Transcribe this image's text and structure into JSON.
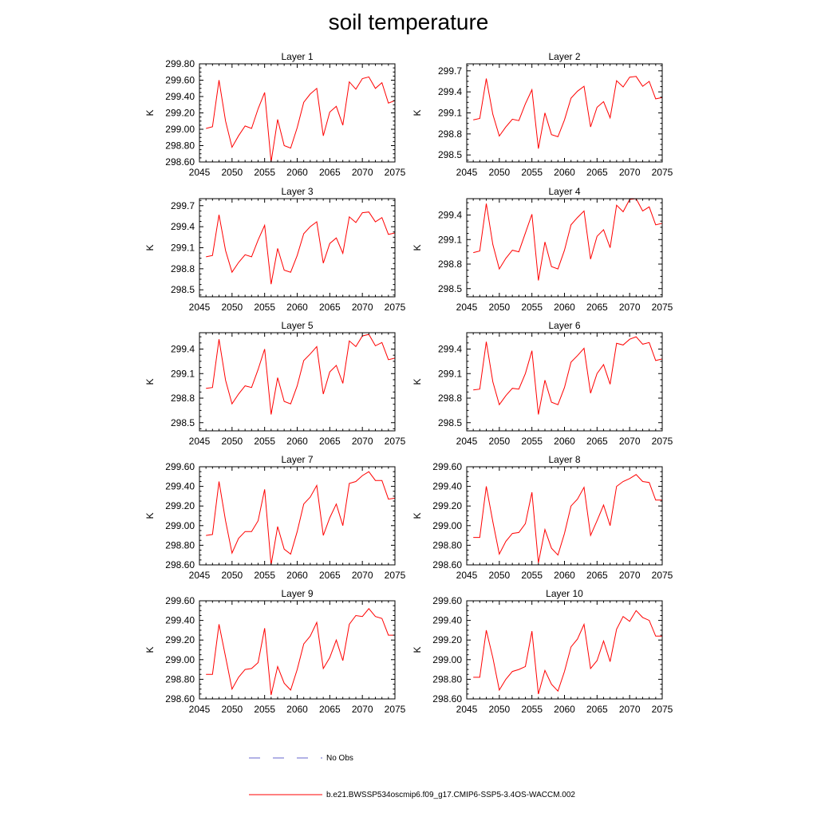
{
  "figure": {
    "title": "soil temperature",
    "legend": {
      "obs_label": "No Obs",
      "model_label": "b.e21.BWSSP534oscmip6.f09_g17.CMIP6-SSP5-3.4OS-WACCM.002"
    },
    "colors": {
      "model": "#ff0000",
      "obs": "#6666cc",
      "axis": "#000000"
    }
  },
  "chart_data": [
    {
      "type": "line",
      "title": "Layer 1",
      "ylabel": "K",
      "xlim": [
        2045,
        2075
      ],
      "ylim": [
        298.6,
        299.8
      ],
      "xticks": [
        2045,
        2050,
        2055,
        2060,
        2065,
        2070,
        2075
      ],
      "yticks": [
        298.6,
        298.8,
        299.0,
        299.2,
        299.4,
        299.6,
        299.8
      ],
      "ytick_decimals": 2,
      "x": [
        2046,
        2047,
        2048,
        2049,
        2050,
        2051,
        2052,
        2053,
        2054,
        2055,
        2056,
        2057,
        2058,
        2059,
        2060,
        2061,
        2062,
        2063,
        2064,
        2065,
        2066,
        2067,
        2068,
        2069,
        2070,
        2071,
        2072,
        2073,
        2074,
        2075
      ],
      "series": [
        {
          "name": "b.e21.BWSSP534oscmip6.f09_g17.CMIP6-SSP5-3.4OS-WACCM.002",
          "values": [
            299.01,
            299.03,
            299.6,
            299.1,
            298.78,
            298.92,
            299.04,
            299.01,
            299.25,
            299.45,
            298.6,
            299.12,
            298.8,
            298.77,
            299.02,
            299.33,
            299.43,
            299.5,
            298.92,
            299.21,
            299.28,
            299.05,
            299.58,
            299.49,
            299.62,
            299.64,
            299.5,
            299.57,
            299.32,
            299.35
          ]
        }
      ]
    },
    {
      "type": "line",
      "title": "Layer 2",
      "ylabel": "K",
      "xlim": [
        2045,
        2075
      ],
      "ylim": [
        298.4,
        299.8
      ],
      "xticks": [
        2045,
        2050,
        2055,
        2060,
        2065,
        2070,
        2075
      ],
      "yticks": [
        298.5,
        298.8,
        299.1,
        299.4,
        299.7
      ],
      "ytick_decimals": 1,
      "x": [
        2046,
        2047,
        2048,
        2049,
        2050,
        2051,
        2052,
        2053,
        2054,
        2055,
        2056,
        2057,
        2058,
        2059,
        2060,
        2061,
        2062,
        2063,
        2064,
        2065,
        2066,
        2067,
        2068,
        2069,
        2070,
        2071,
        2072,
        2073,
        2074,
        2075
      ],
      "series": [
        {
          "name": "b.e21.BWSSP534oscmip6.f09_g17.CMIP6-SSP5-3.4OS-WACCM.002",
          "values": [
            299.0,
            299.02,
            299.59,
            299.08,
            298.77,
            298.9,
            299.01,
            298.99,
            299.23,
            299.43,
            298.59,
            299.1,
            298.79,
            298.76,
            299.0,
            299.31,
            299.41,
            299.48,
            298.9,
            299.18,
            299.26,
            299.03,
            299.56,
            299.47,
            299.61,
            299.62,
            299.48,
            299.55,
            299.3,
            299.32
          ]
        }
      ]
    },
    {
      "type": "line",
      "title": "Layer 3",
      "ylabel": "K",
      "xlim": [
        2045,
        2075
      ],
      "ylim": [
        298.4,
        299.8
      ],
      "xticks": [
        2045,
        2050,
        2055,
        2060,
        2065,
        2070,
        2075
      ],
      "yticks": [
        298.5,
        298.8,
        299.1,
        299.4,
        299.7
      ],
      "ytick_decimals": 1,
      "x": [
        2046,
        2047,
        2048,
        2049,
        2050,
        2051,
        2052,
        2053,
        2054,
        2055,
        2056,
        2057,
        2058,
        2059,
        2060,
        2061,
        2062,
        2063,
        2064,
        2065,
        2066,
        2067,
        2068,
        2069,
        2070,
        2071,
        2072,
        2073,
        2074,
        2075
      ],
      "series": [
        {
          "name": "b.e21.BWSSP534oscmip6.f09_g17.CMIP6-SSP5-3.4OS-WACCM.002",
          "values": [
            298.97,
            298.99,
            299.57,
            299.06,
            298.75,
            298.89,
            299.0,
            298.97,
            299.21,
            299.42,
            298.58,
            299.09,
            298.78,
            298.75,
            298.99,
            299.3,
            299.4,
            299.47,
            298.88,
            299.16,
            299.24,
            299.02,
            299.54,
            299.46,
            299.6,
            299.61,
            299.47,
            299.53,
            299.29,
            299.31
          ]
        }
      ]
    },
    {
      "type": "line",
      "title": "Layer 4",
      "ylabel": "K",
      "xlim": [
        2045,
        2075
      ],
      "ylim": [
        298.4,
        299.6
      ],
      "xticks": [
        2045,
        2050,
        2055,
        2060,
        2065,
        2070,
        2075
      ],
      "yticks": [
        298.5,
        298.8,
        299.1,
        299.4
      ],
      "ytick_decimals": 1,
      "x": [
        2046,
        2047,
        2048,
        2049,
        2050,
        2051,
        2052,
        2053,
        2054,
        2055,
        2056,
        2057,
        2058,
        2059,
        2060,
        2061,
        2062,
        2063,
        2064,
        2065,
        2066,
        2067,
        2068,
        2069,
        2070,
        2071,
        2072,
        2073,
        2074,
        2075
      ],
      "series": [
        {
          "name": "b.e21.BWSSP534oscmip6.f09_g17.CMIP6-SSP5-3.4OS-WACCM.002",
          "values": [
            298.94,
            298.96,
            299.54,
            299.04,
            298.74,
            298.87,
            298.97,
            298.95,
            299.18,
            299.41,
            298.6,
            299.07,
            298.77,
            298.74,
            298.97,
            299.28,
            299.37,
            299.45,
            298.86,
            299.14,
            299.22,
            299.0,
            299.52,
            299.44,
            299.59,
            299.6,
            299.45,
            299.5,
            299.28,
            299.3
          ]
        }
      ]
    },
    {
      "type": "line",
      "title": "Layer 5",
      "ylabel": "K",
      "xlim": [
        2045,
        2075
      ],
      "ylim": [
        298.4,
        299.6
      ],
      "xticks": [
        2045,
        2050,
        2055,
        2060,
        2065,
        2070,
        2075
      ],
      "yticks": [
        298.5,
        298.8,
        299.1,
        299.4
      ],
      "ytick_decimals": 1,
      "x": [
        2046,
        2047,
        2048,
        2049,
        2050,
        2051,
        2052,
        2053,
        2054,
        2055,
        2056,
        2057,
        2058,
        2059,
        2060,
        2061,
        2062,
        2063,
        2064,
        2065,
        2066,
        2067,
        2068,
        2069,
        2070,
        2071,
        2072,
        2073,
        2074,
        2075
      ],
      "series": [
        {
          "name": "b.e21.BWSSP534oscmip6.f09_g17.CMIP6-SSP5-3.4OS-WACCM.002",
          "values": [
            298.92,
            298.93,
            299.52,
            299.02,
            298.73,
            298.85,
            298.95,
            298.93,
            299.15,
            299.4,
            298.6,
            299.05,
            298.76,
            298.73,
            298.95,
            299.26,
            299.34,
            299.43,
            298.85,
            299.12,
            299.2,
            298.98,
            299.5,
            299.43,
            299.56,
            299.58,
            299.44,
            299.48,
            299.27,
            299.29
          ]
        }
      ]
    },
    {
      "type": "line",
      "title": "Layer 6",
      "ylabel": "K",
      "xlim": [
        2045,
        2075
      ],
      "ylim": [
        298.4,
        299.6
      ],
      "xticks": [
        2045,
        2050,
        2055,
        2060,
        2065,
        2070,
        2075
      ],
      "yticks": [
        298.5,
        298.8,
        299.1,
        299.4
      ],
      "ytick_decimals": 1,
      "x": [
        2046,
        2047,
        2048,
        2049,
        2050,
        2051,
        2052,
        2053,
        2054,
        2055,
        2056,
        2057,
        2058,
        2059,
        2060,
        2061,
        2062,
        2063,
        2064,
        2065,
        2066,
        2067,
        2068,
        2069,
        2070,
        2071,
        2072,
        2073,
        2074,
        2075
      ],
      "series": [
        {
          "name": "b.e21.BWSSP534oscmip6.f09_g17.CMIP6-SSP5-3.4OS-WACCM.002",
          "values": [
            298.9,
            298.91,
            299.49,
            299.0,
            298.72,
            298.83,
            298.92,
            298.91,
            299.1,
            299.38,
            298.6,
            299.02,
            298.75,
            298.72,
            298.93,
            299.24,
            299.32,
            299.41,
            298.86,
            299.1,
            299.21,
            298.97,
            299.47,
            299.45,
            299.52,
            299.55,
            299.46,
            299.48,
            299.26,
            299.28
          ]
        }
      ]
    },
    {
      "type": "line",
      "title": "Layer 7",
      "ylabel": "K",
      "xlim": [
        2045,
        2075
      ],
      "ylim": [
        298.6,
        299.6
      ],
      "xticks": [
        2045,
        2050,
        2055,
        2060,
        2065,
        2070,
        2075
      ],
      "yticks": [
        298.6,
        298.8,
        299.0,
        299.2,
        299.4,
        299.6
      ],
      "ytick_decimals": 2,
      "x": [
        2046,
        2047,
        2048,
        2049,
        2050,
        2051,
        2052,
        2053,
        2054,
        2055,
        2056,
        2057,
        2058,
        2059,
        2060,
        2061,
        2062,
        2063,
        2064,
        2065,
        2066,
        2067,
        2068,
        2069,
        2070,
        2071,
        2072,
        2073,
        2074,
        2075
      ],
      "series": [
        {
          "name": "b.e21.BWSSP534oscmip6.f09_g17.CMIP6-SSP5-3.4OS-WACCM.002",
          "values": [
            298.9,
            298.91,
            299.45,
            299.05,
            298.72,
            298.87,
            298.94,
            298.94,
            299.05,
            299.37,
            298.6,
            298.99,
            298.76,
            298.71,
            298.94,
            299.22,
            299.29,
            299.41,
            298.9,
            299.08,
            299.22,
            299.0,
            299.43,
            299.45,
            299.51,
            299.55,
            299.46,
            299.46,
            299.27,
            299.28
          ]
        }
      ]
    },
    {
      "type": "line",
      "title": "Layer 8",
      "ylabel": "K",
      "xlim": [
        2045,
        2075
      ],
      "ylim": [
        298.6,
        299.6
      ],
      "xticks": [
        2045,
        2050,
        2055,
        2060,
        2065,
        2070,
        2075
      ],
      "yticks": [
        298.6,
        298.8,
        299.0,
        299.2,
        299.4,
        299.6
      ],
      "ytick_decimals": 2,
      "x": [
        2046,
        2047,
        2048,
        2049,
        2050,
        2051,
        2052,
        2053,
        2054,
        2055,
        2056,
        2057,
        2058,
        2059,
        2060,
        2061,
        2062,
        2063,
        2064,
        2065,
        2066,
        2067,
        2068,
        2069,
        2070,
        2071,
        2072,
        2073,
        2074,
        2075
      ],
      "series": [
        {
          "name": "b.e21.BWSSP534oscmip6.f09_g17.CMIP6-SSP5-3.4OS-WACCM.002",
          "values": [
            298.88,
            298.88,
            299.4,
            299.04,
            298.71,
            298.84,
            298.92,
            298.93,
            299.02,
            299.34,
            298.62,
            298.96,
            298.77,
            298.7,
            298.92,
            299.2,
            299.27,
            299.39,
            298.9,
            299.05,
            299.21,
            299.0,
            299.4,
            299.45,
            299.48,
            299.52,
            299.45,
            299.44,
            299.26,
            299.26
          ]
        }
      ]
    },
    {
      "type": "line",
      "title": "Layer 9",
      "ylabel": "K",
      "xlim": [
        2045,
        2075
      ],
      "ylim": [
        298.6,
        299.6
      ],
      "xticks": [
        2045,
        2050,
        2055,
        2060,
        2065,
        2070,
        2075
      ],
      "yticks": [
        298.6,
        298.8,
        299.0,
        299.2,
        299.4,
        299.6
      ],
      "ytick_decimals": 2,
      "x": [
        2046,
        2047,
        2048,
        2049,
        2050,
        2051,
        2052,
        2053,
        2054,
        2055,
        2056,
        2057,
        2058,
        2059,
        2060,
        2061,
        2062,
        2063,
        2064,
        2065,
        2066,
        2067,
        2068,
        2069,
        2070,
        2071,
        2072,
        2073,
        2074,
        2075
      ],
      "series": [
        {
          "name": "b.e21.BWSSP534oscmip6.f09_g17.CMIP6-SSP5-3.4OS-WACCM.002",
          "values": [
            298.85,
            298.85,
            299.36,
            299.03,
            298.7,
            298.82,
            298.9,
            298.91,
            298.97,
            299.32,
            298.64,
            298.93,
            298.76,
            298.69,
            298.9,
            299.16,
            299.24,
            299.38,
            298.91,
            299.02,
            299.2,
            298.99,
            299.36,
            299.45,
            299.44,
            299.52,
            299.44,
            299.42,
            299.25,
            299.25
          ]
        }
      ]
    },
    {
      "type": "line",
      "title": "Layer 10",
      "ylabel": "K",
      "xlim": [
        2045,
        2075
      ],
      "ylim": [
        298.6,
        299.6
      ],
      "xticks": [
        2045,
        2050,
        2055,
        2060,
        2065,
        2070,
        2075
      ],
      "yticks": [
        298.6,
        298.8,
        299.0,
        299.2,
        299.4,
        299.6
      ],
      "ytick_decimals": 2,
      "x": [
        2046,
        2047,
        2048,
        2049,
        2050,
        2051,
        2052,
        2053,
        2054,
        2055,
        2056,
        2057,
        2058,
        2059,
        2060,
        2061,
        2062,
        2063,
        2064,
        2065,
        2066,
        2067,
        2068,
        2069,
        2070,
        2071,
        2072,
        2073,
        2074,
        2075
      ],
      "series": [
        {
          "name": "b.e21.BWSSP534oscmip6.f09_g17.CMIP6-SSP5-3.4OS-WACCM.002",
          "values": [
            298.82,
            298.82,
            299.3,
            299.02,
            298.69,
            298.8,
            298.88,
            298.9,
            298.93,
            299.29,
            298.65,
            298.89,
            298.75,
            298.68,
            298.88,
            299.13,
            299.21,
            299.36,
            298.91,
            298.99,
            299.19,
            298.98,
            299.31,
            299.44,
            299.39,
            299.5,
            299.43,
            299.4,
            299.24,
            299.24
          ]
        }
      ]
    }
  ]
}
